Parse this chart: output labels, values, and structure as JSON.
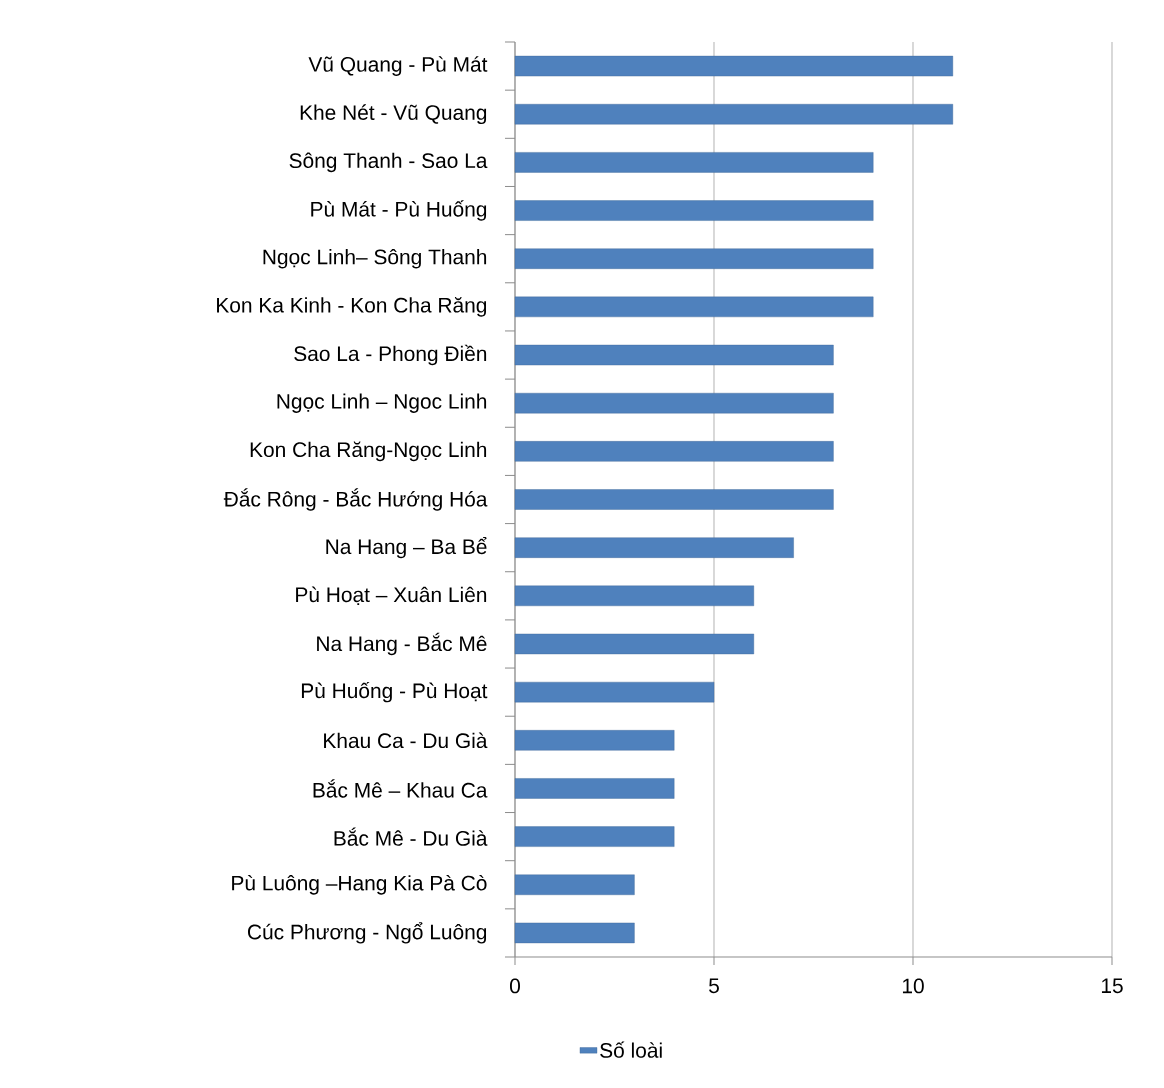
{
  "chart_data": {
    "type": "bar",
    "orientation": "horizontal",
    "categories": [
      "Vũ Quang - Pù Mát",
      "Khe Nét - Vũ Quang",
      "Sông Thanh - Sao La",
      "Pù Mát - Pù Huống",
      "Ngọc Linh– Sông Thanh",
      "Kon Ka Kinh - Kon Cha Răng",
      "Sao La - Phong Điền",
      "Ngọc Linh – Ngoc Linh",
      "Kon Cha Răng-Ngọc Linh",
      "Đắc Rông - Bắc Hướng Hóa",
      "Na Hang – Ba Bể",
      "Pù Hoạt – Xuân Liên",
      "Na Hang - Bắc Mê",
      "Pù Huống - Pù Hoạt",
      "Khau Ca - Du Già",
      "Bắc Mê – Khau Ca",
      "Bắc Mê - Du Già",
      "Pù Luông –Hang Kia Pà Cò",
      "Cúc Phương - Ngổ Luông"
    ],
    "series": [
      {
        "name": "Số loài",
        "color": "#4f81bd",
        "values": [
          11,
          11,
          9,
          9,
          9,
          9,
          8,
          8,
          8,
          8,
          7,
          6,
          6,
          5,
          4,
          4,
          4,
          3,
          3
        ]
      }
    ],
    "xlim": [
      0,
      15
    ],
    "xticks": [
      0,
      5,
      10,
      15
    ],
    "grid": "x",
    "legend": "bottom"
  }
}
